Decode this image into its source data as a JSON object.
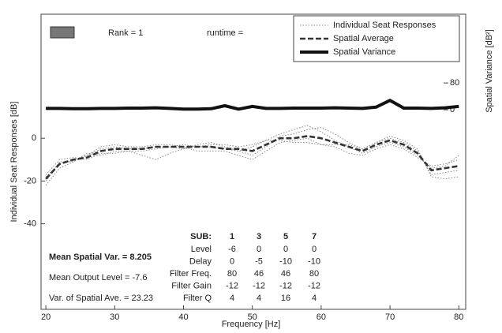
{
  "chart_data": {
    "type": "line",
    "xlabel": "Frequency [Hz]",
    "ylabel": "Individual Seat Responses  [dB]",
    "y2label": "Spatial Variance  [dB²]",
    "x": [
      20,
      22,
      24,
      26,
      28,
      30,
      32,
      34,
      36,
      38,
      40,
      42,
      44,
      46,
      48,
      50,
      52,
      54,
      56,
      58,
      60,
      62,
      64,
      66,
      68,
      70,
      72,
      74,
      76,
      78,
      80
    ],
    "series": [
      {
        "name": "Individual Seat Responses",
        "color": "#888888",
        "style": "dotted",
        "values": [
          [
            -22,
            -14,
            -11,
            -8,
            -5,
            -4,
            -5,
            -5,
            -4,
            -4,
            -3,
            -4,
            -4,
            -5,
            -6,
            -8,
            -4,
            1,
            2,
            4,
            5,
            2,
            -2,
            -5,
            -2,
            0,
            -2,
            -6,
            -17,
            -16,
            -15
          ],
          [
            -17,
            -10,
            -9,
            -10,
            -7,
            -7,
            -6,
            -8,
            -10,
            -7,
            -5,
            -4,
            -3,
            -3,
            -4,
            -3,
            -1,
            -1,
            -2,
            -2,
            -3,
            -4,
            -7,
            -8,
            -5,
            -3,
            -5,
            -9,
            -13,
            -12,
            -10
          ],
          [
            -18,
            -12,
            -10,
            -8,
            -4,
            -3,
            -4,
            -4,
            -3,
            -3,
            -4,
            -6,
            -6,
            -6,
            -8,
            -10,
            -6,
            -2,
            -1,
            0,
            -3,
            -3,
            -3,
            -5,
            -2,
            1,
            -1,
            -5,
            -18,
            -19,
            -18
          ],
          [
            -20,
            -11,
            -11,
            -7,
            -8,
            -6,
            -6,
            -6,
            -5,
            -4,
            -5,
            -3,
            -2,
            -4,
            -6,
            -4,
            -1,
            2,
            4,
            6,
            3,
            -1,
            -4,
            -7,
            -4,
            -2,
            -4,
            -8,
            -14,
            -13,
            -8
          ]
        ]
      },
      {
        "name": "Spatial Average",
        "color": "#333333",
        "style": "dashed",
        "values": [
          -19,
          -12,
          -10,
          -9,
          -6,
          -5,
          -5,
          -5,
          -4,
          -4,
          -4,
          -4,
          -4,
          -5,
          -5,
          -6,
          -3,
          0,
          0,
          1,
          0,
          -2,
          -4,
          -6,
          -3,
          -1,
          -3,
          -7,
          -15,
          -14,
          -13
        ]
      },
      {
        "name": "Spatial Variance",
        "color": "#111111",
        "style": "solid",
        "axis": "y2",
        "values": [
          4,
          4,
          3,
          3,
          4,
          4,
          5,
          5,
          6,
          4,
          2,
          2,
          3,
          12,
          2,
          10,
          4,
          4,
          5,
          5,
          5,
          6,
          5,
          4,
          8,
          28,
          5,
          5,
          4,
          6,
          10
        ]
      }
    ],
    "xlim": [
      19.3,
      81.0
    ],
    "xticks": [
      20,
      30,
      40,
      50,
      60,
      70,
      80
    ],
    "ylim": [
      -80,
      58
    ],
    "yticks": [
      0,
      -20,
      -40
    ],
    "y2lim": [
      -595,
      285
    ],
    "y2ticks": [
      80,
      0
    ],
    "annotations": {
      "rank": "Rank = 1",
      "runtime": "runtime =",
      "stats": [
        "Mean Spatial Var. = 8.205",
        "Mean Output Level = -7.6",
        "Var. of Spatial Ave. = 23.23"
      ]
    },
    "table": {
      "header": [
        "SUB:",
        "1",
        "3",
        "5",
        "7"
      ],
      "rows": [
        [
          "Level",
          -6,
          0,
          0,
          0
        ],
        [
          "Delay",
          0,
          -5,
          -10,
          -10
        ],
        [
          "Filter Freq.",
          80,
          46,
          46,
          80
        ],
        [
          "Filter Gain",
          -12,
          -12,
          -12,
          -12
        ],
        [
          "Filter  Q",
          4,
          4,
          16,
          4
        ]
      ]
    }
  }
}
